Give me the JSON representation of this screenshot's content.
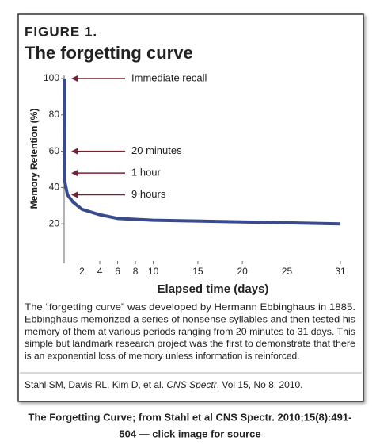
{
  "figure_label": "FIGURE 1.",
  "chart_data": {
    "type": "line",
    "title": "The forgetting curve",
    "x_label": "Elapsed time (days)",
    "y_label": "Memory Retention (%)",
    "x": [
      0,
      0.014,
      0.042,
      0.375,
      1,
      2,
      4,
      6,
      10,
      31
    ],
    "values": [
      100,
      58,
      44,
      36,
      32,
      28,
      25,
      23,
      22,
      20
    ],
    "color": "#3a4a8e",
    "xlim": [
      0,
      31
    ],
    "ylim": [
      0,
      100
    ],
    "xticks": [
      2,
      4,
      6,
      8,
      10,
      15,
      20,
      25,
      31
    ],
    "yticks": [
      20,
      40,
      60,
      80,
      100
    ],
    "grid": false,
    "annotations": [
      {
        "text": "Immediate recall",
        "value": 100
      },
      {
        "text": "20 minutes",
        "value": 60
      },
      {
        "text": "1 hour",
        "value": 48
      },
      {
        "text": "9 hours",
        "value": 36
      }
    ],
    "annotation_color": "#7a2232"
  },
  "description_lines": [
    "The “forgetting curve” was developed by Hermann Ebbinghaus in 1885.",
    "Ebbinghaus memorized a series of nonsense syllables and then tested his",
    "memory of them at various periods ranging from 20 minutes to 31 days.  This",
    "simple but landmark research project was the first to demonstrate that there",
    "is an exponential loss of memory unless information is reinforced."
  ],
  "citation": [
    "Stahl SM, Davis RL, Kim D, et al. ",
    "CNS Spectr",
    ". Vol 15, No 8. 2010."
  ],
  "caption_lines": [
    "The Forgetting Curve; from Stahl et al CNS Spectr. 2010;15(8):491-",
    "504 — click image for source"
  ]
}
